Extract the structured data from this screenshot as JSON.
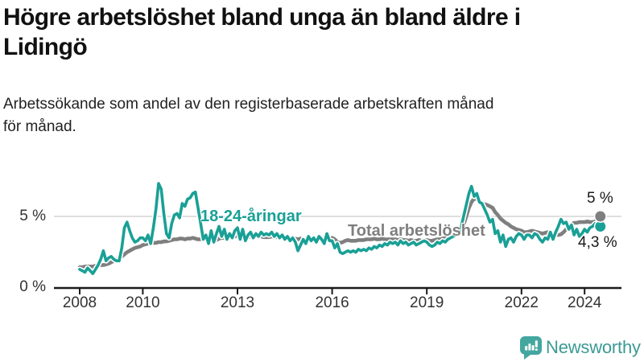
{
  "header": {
    "title_line1": "Högre arbetslöshet bland unga än bland äldre i",
    "title_line2": "Lidingö",
    "subtitle_line1": "Arbetssökande som andel av den registerbaserade arbetskraften månad",
    "subtitle_line2": "för månad."
  },
  "chart_data": {
    "type": "line",
    "title": "Högre arbetslöshet bland unga än bland äldre i Lidingö",
    "subtitle": "Arbetssökande som andel av den registerbaserade arbetskraften månad för månad.",
    "unit": "%",
    "x_range": [
      2008.0,
      2024.583
    ],
    "ylim": [
      0,
      8.4
    ],
    "grid": "horizontal-at-5-only",
    "legend_position": "inline-labels",
    "x_ticks": [
      2008,
      2010,
      2013,
      2016,
      2019,
      2022,
      2024
    ],
    "y_ticks": [
      {
        "value": 5,
        "label": "5 %"
      },
      {
        "value": 0,
        "label": "0 %"
      }
    ],
    "style": {
      "grid_color": "#d9d9d9",
      "axis_color": "#1a1a1a",
      "tick_label_color": "#333333",
      "end_label_color": "#1a1a1a"
    },
    "series": [
      {
        "id": "total",
        "name": "Total arbetslöshet",
        "color": "#7f7f7f",
        "width": 4.6,
        "halo": false,
        "start_year": 2008,
        "frequency": "monthly",
        "end_label": "5 %",
        "end_value": 5.0,
        "values": [
          1.45,
          1.45,
          1.5,
          1.5,
          1.5,
          1.5,
          1.55,
          1.55,
          1.6,
          1.6,
          1.65,
          1.7,
          1.8,
          1.9,
          2.0,
          2.1,
          2.2,
          2.35,
          2.5,
          2.6,
          2.7,
          2.8,
          2.85,
          2.9,
          3.0,
          3.05,
          3.1,
          3.1,
          3.15,
          3.15,
          3.2,
          3.2,
          3.25,
          3.25,
          3.3,
          3.35,
          3.4,
          3.4,
          3.45,
          3.45,
          3.4,
          3.45,
          3.45,
          3.5,
          3.45,
          3.4,
          3.4,
          3.4,
          3.4,
          3.15,
          3.25,
          3.3,
          3.35,
          3.45,
          3.5,
          3.5,
          3.55,
          3.55,
          3.6,
          3.6,
          3.65,
          3.6,
          3.6,
          3.55,
          3.55,
          3.6,
          3.6,
          3.65,
          3.6,
          3.6,
          3.55,
          3.55,
          3.55,
          3.6,
          3.55,
          3.55,
          3.5,
          3.5,
          3.45,
          3.45,
          3.4,
          3.4,
          3.45,
          3.4,
          3.45,
          3.4,
          3.4,
          3.35,
          3.4,
          3.35,
          3.4,
          3.4,
          3.35,
          3.4,
          3.4,
          3.4,
          3.5,
          3.4,
          3.2,
          3.15,
          3.2,
          3.3,
          3.35,
          3.3,
          3.3,
          3.3,
          3.35,
          3.35,
          3.35,
          3.4,
          3.4,
          3.4,
          3.45,
          3.4,
          3.4,
          3.45,
          3.4,
          3.4,
          3.4,
          3.4,
          3.4,
          3.35,
          3.4,
          3.35,
          3.35,
          3.3,
          3.35,
          3.3,
          3.3,
          3.35,
          3.3,
          3.35,
          3.35,
          3.3,
          3.3,
          3.35,
          3.4,
          3.4,
          3.45,
          3.5,
          3.5,
          3.55,
          3.6,
          3.7,
          3.8,
          4.0,
          4.4,
          5.0,
          5.6,
          6.0,
          6.25,
          6.2,
          6.1,
          5.95,
          5.85,
          5.8,
          5.7,
          5.6,
          5.3,
          5.1,
          4.85,
          4.7,
          4.55,
          4.45,
          4.3,
          4.2,
          4.1,
          4.05,
          4.0,
          3.9,
          3.9,
          3.95,
          4.0,
          3.95,
          3.9,
          3.85,
          3.8,
          3.85,
          3.9,
          3.85,
          3.8,
          3.7,
          3.7,
          3.75,
          3.9,
          4.1,
          4.3,
          4.45,
          4.55,
          4.55,
          4.6,
          4.6,
          4.6,
          4.65,
          4.6,
          4.6,
          4.65,
          4.8,
          5.0
        ]
      },
      {
        "id": "young",
        "name": "18-24-åringar",
        "color": "#1aa096",
        "width": 3.6,
        "halo": true,
        "start_year": 2008,
        "frequency": "monthly",
        "end_label": "4,3 %",
        "end_value": 4.3,
        "values": [
          1.3,
          1.2,
          1.1,
          1.4,
          1.2,
          1.0,
          1.3,
          1.6,
          2.0,
          2.6,
          1.9,
          2.1,
          2.2,
          2.0,
          1.9,
          1.9,
          2.8,
          4.2,
          4.6,
          4.0,
          3.5,
          3.2,
          3.3,
          3.5,
          3.5,
          3.3,
          3.7,
          3.1,
          4.2,
          5.5,
          7.3,
          6.9,
          5.2,
          3.8,
          3.5,
          4.5,
          5.1,
          5.2,
          4.9,
          5.9,
          5.7,
          6.2,
          6.3,
          6.6,
          6.7,
          5.6,
          4.5,
          3.4,
          3.7,
          3.1,
          4.0,
          3.2,
          3.8,
          4.3,
          3.6,
          4.1,
          3.4,
          3.8,
          3.5,
          4.0,
          4.2,
          3.4,
          4.1,
          3.3,
          3.7,
          3.9,
          3.5,
          3.8,
          3.6,
          3.9,
          3.7,
          3.8,
          3.7,
          3.9,
          3.6,
          3.8,
          3.5,
          3.7,
          3.4,
          3.6,
          3.3,
          3.5,
          3.2,
          2.6,
          3.0,
          3.4,
          3.1,
          3.6,
          3.3,
          3.5,
          3.2,
          3.6,
          3.4,
          3.1,
          3.8,
          3.3,
          3.3,
          2.8,
          3.1,
          2.5,
          2.4,
          2.5,
          2.6,
          2.5,
          2.6,
          2.5,
          2.7,
          2.6,
          2.7,
          2.6,
          2.8,
          2.7,
          2.9,
          2.8,
          3.0,
          2.9,
          3.1,
          3.0,
          3.2,
          3.1,
          3.2,
          3.0,
          3.3,
          3.1,
          3.2,
          3.0,
          3.1,
          3.2,
          3.0,
          3.1,
          3.2,
          3.3,
          3.2,
          3.0,
          2.9,
          3.0,
          3.2,
          3.1,
          3.3,
          3.2,
          3.4,
          3.5,
          3.6,
          3.7,
          3.8,
          4.2,
          5.0,
          5.8,
          6.6,
          7.1,
          6.4,
          6.6,
          6.0,
          5.9,
          5.5,
          5.1,
          4.6,
          4.8,
          3.8,
          4.0,
          3.2,
          3.7,
          2.9,
          3.4,
          3.5,
          3.2,
          3.6,
          3.8,
          3.7,
          3.4,
          3.7,
          3.7,
          3.5,
          3.8,
          3.7,
          3.4,
          3.2,
          3.5,
          3.4,
          3.9,
          3.4,
          3.9,
          4.3,
          4.8,
          4.5,
          4.6,
          4.1,
          4.4,
          3.7,
          4.1,
          3.6,
          3.8,
          4.1,
          3.9,
          4.2,
          4.3,
          4.5,
          4.2,
          4.3
        ]
      }
    ]
  },
  "branding": {
    "logo_text": "Newsworthy",
    "icon_color": "#43a7a0",
    "text_color": "#3b9a94"
  }
}
